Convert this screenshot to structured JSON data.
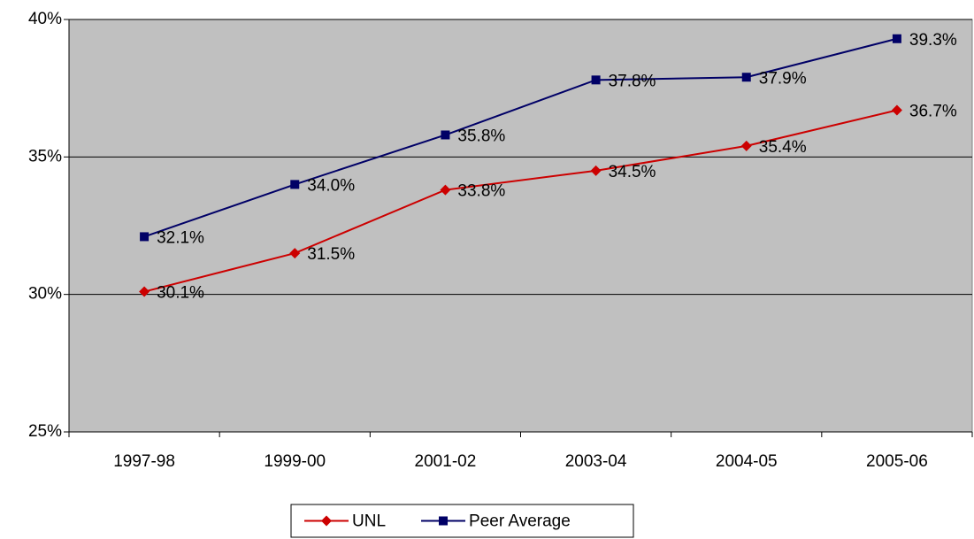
{
  "chart_data": {
    "type": "line",
    "categories": [
      "1997-98",
      "1999-00",
      "2001-02",
      "2003-04",
      "2004-05",
      "2005-06"
    ],
    "series": [
      {
        "name": "UNL",
        "color": "#cc0000",
        "marker": "diamond",
        "values": [
          30.1,
          31.5,
          33.8,
          34.5,
          35.4,
          36.7
        ],
        "value_labels": [
          "30.1%",
          "31.5%",
          "33.8%",
          "34.5%",
          "35.4%",
          "36.7%"
        ]
      },
      {
        "name": "Peer Average",
        "color": "#000066",
        "marker": "square",
        "values": [
          32.1,
          34.0,
          35.8,
          37.8,
          37.9,
          39.3
        ],
        "value_labels": [
          "32.1%",
          "34.0%",
          "35.8%",
          "37.8%",
          "37.9%",
          "39.3%"
        ]
      }
    ],
    "ylim": [
      25,
      40
    ],
    "yticks": [
      {
        "value": 25,
        "label": "25%"
      },
      {
        "value": 30,
        "label": "30%"
      },
      {
        "value": 35,
        "label": "35%"
      },
      {
        "value": 40,
        "label": "40%"
      }
    ],
    "grid": true,
    "plot_background": "#c0c0c0",
    "legend": "bottom"
  }
}
